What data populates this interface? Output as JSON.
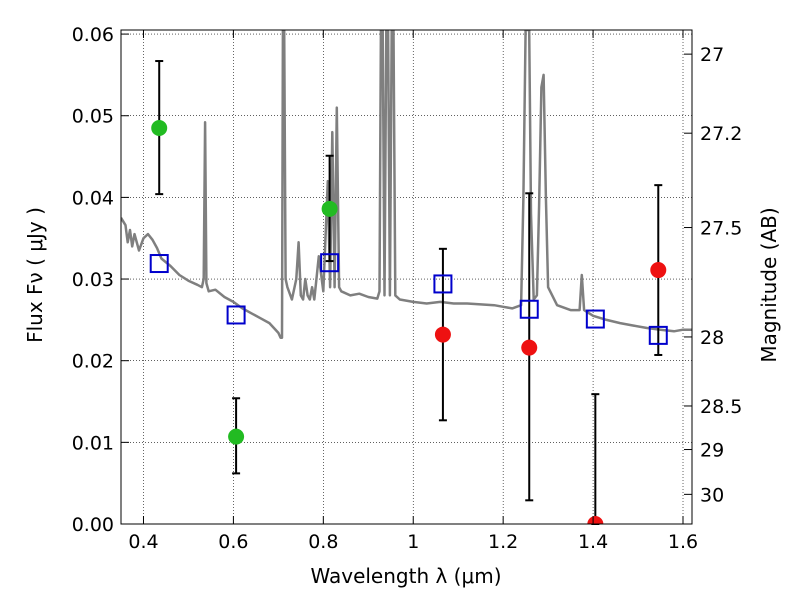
{
  "chart_data": {
    "type": "scatter",
    "xlabel": "Wavelength  λ (μm)",
    "ylabel": "Flux  Fν  ( μJy )",
    "ylabel_right": "Magnitude (AB)",
    "xlim": [
      0.35,
      1.62
    ],
    "ylim": [
      0.0,
      0.0605
    ],
    "grid": true,
    "x_ticks": [
      0.4,
      0.6,
      0.8,
      1.0,
      1.2,
      1.4,
      1.6
    ],
    "x_tick_labels": [
      "0.4",
      "0.6",
      "0.8",
      "1",
      "1.2",
      "1.4",
      "1.6"
    ],
    "y_ticks": [
      0.0,
      0.01,
      0.02,
      0.03,
      0.04,
      0.05,
      0.06
    ],
    "y_tick_labels": [
      "0.00",
      "0.01",
      "0.02",
      "0.03",
      "0.04",
      "0.05",
      "0.06"
    ],
    "right_axis_ticks": [
      {
        "label": "27",
        "mag": 27.0
      },
      {
        "label": "27.2",
        "mag": 27.2
      },
      {
        "label": "27.5",
        "mag": 27.5
      },
      {
        "label": "28",
        "mag": 28.0
      },
      {
        "label": "28.5",
        "mag": 28.5
      },
      {
        "label": "29",
        "mag": 29.0
      },
      {
        "label": "30",
        "mag": 30.0
      }
    ],
    "colors": {
      "green": "#22bb22",
      "red": "#ee1111",
      "model": "#7f7f7f",
      "model_squares": "#0000cc",
      "errorbar": "#000000"
    },
    "series": [
      {
        "marker": "circle",
        "color": "green",
        "points": [
          {
            "x": 0.435,
            "y": 0.0485,
            "ylo": 0.0404,
            "yhi": 0.0567
          },
          {
            "x": 0.606,
            "y": 0.0107,
            "ylo": 0.0062,
            "yhi": 0.0154
          },
          {
            "x": 0.814,
            "y": 0.0386,
            "ylo": 0.0322,
            "yhi": 0.0451
          }
        ]
      },
      {
        "marker": "circle",
        "color": "red",
        "points": [
          {
            "x": 1.066,
            "y": 0.0232,
            "ylo": 0.0127,
            "yhi": 0.0337
          },
          {
            "x": 1.258,
            "y": 0.0216,
            "ylo": 0.0029,
            "yhi": 0.0405
          },
          {
            "x": 1.405,
            "y": 0.0,
            "ylo": 0.0,
            "yhi": 0.0159
          },
          {
            "x": 1.545,
            "y": 0.0311,
            "ylo": 0.0207,
            "yhi": 0.0415
          }
        ]
      },
      {
        "marker": "square-open",
        "color": "model_squares",
        "points": [
          {
            "x": 0.435,
            "y": 0.0319
          },
          {
            "x": 0.606,
            "y": 0.0256
          },
          {
            "x": 0.814,
            "y": 0.032
          },
          {
            "x": 1.066,
            "y": 0.0294
          },
          {
            "x": 1.258,
            "y": 0.0263
          },
          {
            "x": 1.405,
            "y": 0.0251
          },
          {
            "x": 1.545,
            "y": 0.0231
          }
        ]
      },
      {
        "type": "line",
        "color": "model",
        "points": [
          [
            0.35,
            0.0375
          ],
          [
            0.36,
            0.0366
          ],
          [
            0.365,
            0.0345
          ],
          [
            0.37,
            0.036
          ],
          [
            0.375,
            0.034
          ],
          [
            0.38,
            0.0355
          ],
          [
            0.39,
            0.0335
          ],
          [
            0.4,
            0.035
          ],
          [
            0.41,
            0.0355
          ],
          [
            0.42,
            0.0348
          ],
          [
            0.43,
            0.0338
          ],
          [
            0.44,
            0.0325
          ],
          [
            0.46,
            0.0316
          ],
          [
            0.48,
            0.0305
          ],
          [
            0.5,
            0.0298
          ],
          [
            0.52,
            0.0293
          ],
          [
            0.53,
            0.029
          ],
          [
            0.534,
            0.03
          ],
          [
            0.537,
            0.0492
          ],
          [
            0.54,
            0.0295
          ],
          [
            0.545,
            0.0285
          ],
          [
            0.56,
            0.0287
          ],
          [
            0.58,
            0.0278
          ],
          [
            0.6,
            0.0272
          ],
          [
            0.62,
            0.0264
          ],
          [
            0.64,
            0.0258
          ],
          [
            0.66,
            0.0252
          ],
          [
            0.68,
            0.0246
          ],
          [
            0.7,
            0.0234
          ],
          [
            0.705,
            0.0228
          ],
          [
            0.708,
            0.0228
          ],
          [
            0.71,
            0.0605
          ],
          [
            0.713,
            0.0605
          ],
          [
            0.716,
            0.03
          ],
          [
            0.72,
            0.029
          ],
          [
            0.73,
            0.0275
          ],
          [
            0.74,
            0.03
          ],
          [
            0.745,
            0.0345
          ],
          [
            0.75,
            0.028
          ],
          [
            0.755,
            0.0275
          ],
          [
            0.76,
            0.03
          ],
          [
            0.765,
            0.028
          ],
          [
            0.77,
            0.0275
          ],
          [
            0.775,
            0.029
          ],
          [
            0.78,
            0.0275
          ],
          [
            0.79,
            0.0328
          ],
          [
            0.8,
            0.0285
          ],
          [
            0.81,
            0.042
          ],
          [
            0.815,
            0.029
          ],
          [
            0.82,
            0.048
          ],
          [
            0.825,
            0.029
          ],
          [
            0.83,
            0.051
          ],
          [
            0.835,
            0.029
          ],
          [
            0.84,
            0.0285
          ],
          [
            0.86,
            0.028
          ],
          [
            0.88,
            0.0282
          ],
          [
            0.9,
            0.0278
          ],
          [
            0.92,
            0.0276
          ],
          [
            0.925,
            0.0285
          ],
          [
            0.928,
            0.0605
          ],
          [
            0.932,
            0.0605
          ],
          [
            0.936,
            0.028
          ],
          [
            0.94,
            0.0605
          ],
          [
            0.944,
            0.0605
          ],
          [
            0.948,
            0.028
          ],
          [
            0.952,
            0.0605
          ],
          [
            0.956,
            0.0605
          ],
          [
            0.96,
            0.028
          ],
          [
            0.97,
            0.0275
          ],
          [
            1.0,
            0.0272
          ],
          [
            1.03,
            0.027
          ],
          [
            1.06,
            0.0272
          ],
          [
            1.09,
            0.027
          ],
          [
            1.12,
            0.027
          ],
          [
            1.15,
            0.0269
          ],
          [
            1.18,
            0.0268
          ],
          [
            1.2,
            0.0266
          ],
          [
            1.22,
            0.0264
          ],
          [
            1.24,
            0.0268
          ],
          [
            1.245,
            0.04
          ],
          [
            1.25,
            0.0605
          ],
          [
            1.258,
            0.0605
          ],
          [
            1.262,
            0.038
          ],
          [
            1.268,
            0.0275
          ],
          [
            1.275,
            0.028
          ],
          [
            1.28,
            0.039
          ],
          [
            1.285,
            0.0535
          ],
          [
            1.29,
            0.055
          ],
          [
            1.295,
            0.04
          ],
          [
            1.3,
            0.029
          ],
          [
            1.32,
            0.0268
          ],
          [
            1.35,
            0.0262
          ],
          [
            1.37,
            0.0262
          ],
          [
            1.375,
            0.0305
          ],
          [
            1.38,
            0.0262
          ],
          [
            1.4,
            0.0255
          ],
          [
            1.43,
            0.025
          ],
          [
            1.46,
            0.0246
          ],
          [
            1.49,
            0.0243
          ],
          [
            1.52,
            0.024
          ],
          [
            1.55,
            0.0238
          ],
          [
            1.58,
            0.0236
          ],
          [
            1.6,
            0.0238
          ],
          [
            1.62,
            0.0238
          ]
        ]
      }
    ]
  }
}
